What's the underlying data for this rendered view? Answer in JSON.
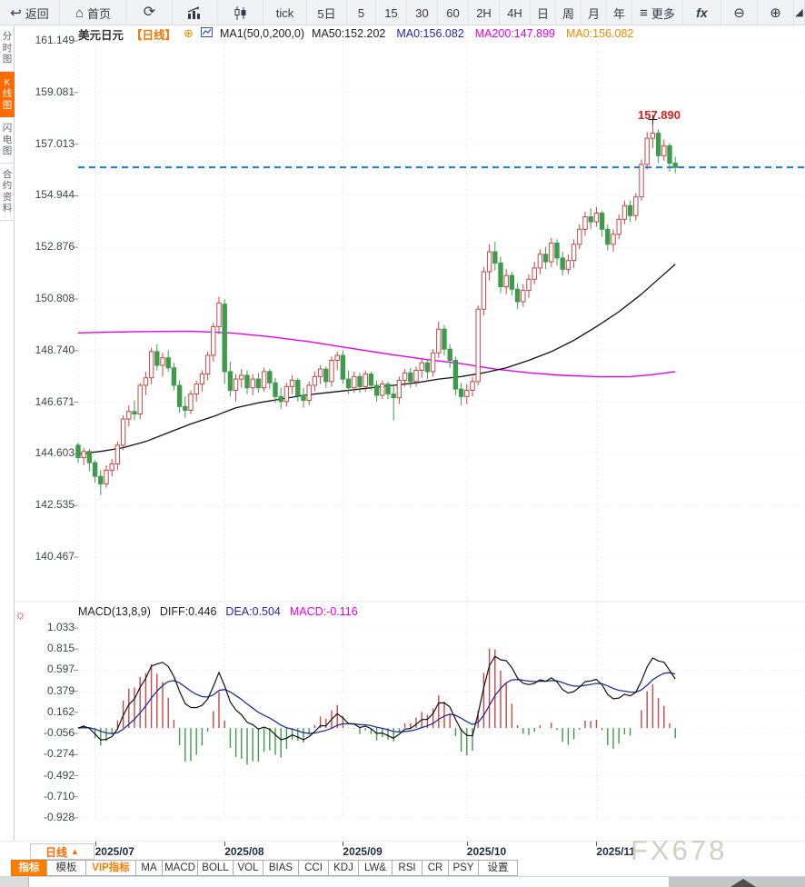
{
  "watermark": "FX678",
  "toolbar": {
    "items": [
      {
        "icon": "back-arrow",
        "label": "返回"
      },
      {
        "icon": "home",
        "label": "首页"
      },
      {
        "icon": "refresh",
        "label": ""
      },
      {
        "icon": "bar-chart",
        "label": ""
      },
      {
        "icon": "candlestick",
        "label": ""
      },
      {
        "label": "tick"
      },
      {
        "label": "5日"
      },
      {
        "label": "5"
      },
      {
        "label": "15"
      },
      {
        "label": "30"
      },
      {
        "label": "60"
      },
      {
        "label": "2H"
      },
      {
        "label": "4H"
      },
      {
        "label": "日"
      },
      {
        "label": "周"
      },
      {
        "label": "月"
      },
      {
        "label": "年"
      },
      {
        "icon": "menu",
        "label": "更多"
      },
      {
        "icon": "fx",
        "label": ""
      },
      {
        "icon": "zoom-out",
        "label": ""
      },
      {
        "icon": "zoom-in",
        "label": ""
      },
      {
        "icon": "draw",
        "label": ""
      }
    ]
  },
  "sidebar": {
    "tabs": [
      {
        "label": "分\n时\n图",
        "active": false
      },
      {
        "label": "K\n线\n图",
        "active": true
      },
      {
        "label": "闪\n电\n图",
        "active": false
      },
      {
        "label": "合\n约\n资\n料",
        "active": false
      }
    ]
  },
  "chart_header": {
    "symbol": "美元日元",
    "period": "【日线】",
    "ma_settings": "MA1(50,0,200,0)",
    "ma_values": [
      {
        "text": "MA50:152.202",
        "color": "#222222"
      },
      {
        "text": "MA0:156.082",
        "color": "#2525b0"
      },
      {
        "text": "MA200:147.899",
        "color": "#e800e8"
      },
      {
        "text": "MA0:156.082",
        "color": "#f08a00"
      }
    ]
  },
  "annotation": {
    "text": "157.890"
  },
  "price_axis": {
    "labels": [
      "161.149",
      "159.081",
      "157.013",
      "154.944",
      "152.876",
      "150.808",
      "148.740",
      "146.671",
      "144.603",
      "142.535",
      "140.467"
    ]
  },
  "macd": {
    "header": "MACD(13,8,9)",
    "diff_label": "DIFF:0.446",
    "dea_label": "DEA:0.504",
    "macd_label": "MACD:-0.116",
    "axis_labels": [
      "1.033",
      "0.815",
      "0.597",
      "0.379",
      "0.162",
      "-0.056",
      "-0.274",
      "-0.492",
      "-0.710",
      "-0.928"
    ]
  },
  "x_axis": {
    "period_label": "日线",
    "period_arrow": "▲",
    "months": [
      {
        "label": "2025/07",
        "index": 3
      },
      {
        "label": "2025/08",
        "index": 26
      },
      {
        "label": "2025/09",
        "index": 47
      },
      {
        "label": "2025/10",
        "index": 69
      },
      {
        "label": "2025/11",
        "index": 92
      }
    ]
  },
  "bottom_toolbar": {
    "tabs": [
      {
        "label": "指标",
        "variant": "active"
      },
      {
        "label": "模板",
        "variant": ""
      },
      {
        "label": "VIP指标",
        "variant": "vip"
      },
      {
        "label": "MA",
        "variant": ""
      },
      {
        "label": "MACD",
        "variant": ""
      },
      {
        "label": "BOLL",
        "variant": ""
      },
      {
        "label": "VOL",
        "variant": ""
      },
      {
        "label": "BIAS",
        "variant": ""
      },
      {
        "label": "CCI",
        "variant": ""
      },
      {
        "label": "KDJ",
        "variant": ""
      },
      {
        "label": "LW&",
        "variant": ""
      },
      {
        "label": "RSI",
        "variant": ""
      },
      {
        "label": "CR",
        "variant": ""
      },
      {
        "label": "PSY",
        "variant": ""
      },
      {
        "label": "设置",
        "variant": ""
      }
    ]
  },
  "chart_data": {
    "type": "candlestick+macd",
    "symbol": "USD/JPY daily (美元日元 日线)",
    "price_axis_range": {
      "top": 161.149,
      "bottom": 140.467
    },
    "macd_axis_range": {
      "top": 1.033,
      "bottom": -0.928
    },
    "current_price_line": 156.082,
    "high_marker": {
      "index": 102,
      "price": 157.89
    },
    "macd_params": {
      "display": "13,8,9",
      "fast": 8,
      "slow": 13,
      "signal": 9
    },
    "colors": {
      "up": "#c64747",
      "down": "#3f9a4c",
      "ma50": "#111111",
      "ma200": "#e800e8",
      "diff": "#111111",
      "dea": "#22309a",
      "price_line": "#1779e0",
      "grid_h": "#ececf6",
      "grid_v": "#e3dcee"
    },
    "candles": [
      [
        144.95,
        145.05,
        144.25,
        144.45
      ],
      [
        144.45,
        144.85,
        144.15,
        144.7
      ],
      [
        144.7,
        144.8,
        143.9,
        144.25
      ],
      [
        144.25,
        144.35,
        143.45,
        143.7
      ],
      [
        143.7,
        143.95,
        142.95,
        143.4
      ],
      [
        143.4,
        144.15,
        143.25,
        143.95
      ],
      [
        143.95,
        144.4,
        143.7,
        144.2
      ],
      [
        144.2,
        145.1,
        143.95,
        144.95
      ],
      [
        144.95,
        146.15,
        144.75,
        146.0
      ],
      [
        146.0,
        146.55,
        145.7,
        146.3
      ],
      [
        146.3,
        146.75,
        145.95,
        146.2
      ],
      [
        146.2,
        147.45,
        146.0,
        147.35
      ],
      [
        147.35,
        147.9,
        146.95,
        147.65
      ],
      [
        147.65,
        148.85,
        147.4,
        148.7
      ],
      [
        148.7,
        149.0,
        147.95,
        148.15
      ],
      [
        148.15,
        148.65,
        147.7,
        148.45
      ],
      [
        148.45,
        148.75,
        147.9,
        148.05
      ],
      [
        148.05,
        148.25,
        147.15,
        147.35
      ],
      [
        147.35,
        147.55,
        146.25,
        146.5
      ],
      [
        146.5,
        146.9,
        146.05,
        146.35
      ],
      [
        146.35,
        147.15,
        146.2,
        147.0
      ],
      [
        147.0,
        147.55,
        146.7,
        147.4
      ],
      [
        147.4,
        147.95,
        147.1,
        147.8
      ],
      [
        147.8,
        148.7,
        147.55,
        148.55
      ],
      [
        148.55,
        149.85,
        148.3,
        149.7
      ],
      [
        149.7,
        150.9,
        149.4,
        150.65
      ],
      [
        150.6,
        150.8,
        147.4,
        147.9
      ],
      [
        147.9,
        148.3,
        146.9,
        147.15
      ],
      [
        147.15,
        147.8,
        146.7,
        147.6
      ],
      [
        147.6,
        148.0,
        147.25,
        147.75
      ],
      [
        147.75,
        147.95,
        147.0,
        147.25
      ],
      [
        147.25,
        147.8,
        146.95,
        147.6
      ],
      [
        147.6,
        147.85,
        147.05,
        147.25
      ],
      [
        147.25,
        148.05,
        147.1,
        147.9
      ],
      [
        147.9,
        148.0,
        147.2,
        147.45
      ],
      [
        147.45,
        147.65,
        146.65,
        146.9
      ],
      [
        146.9,
        147.25,
        146.4,
        146.7
      ],
      [
        146.7,
        147.45,
        146.5,
        147.3
      ],
      [
        147.3,
        147.75,
        147.0,
        147.55
      ],
      [
        147.55,
        147.65,
        146.7,
        146.95
      ],
      [
        146.95,
        147.25,
        146.45,
        146.75
      ],
      [
        146.75,
        147.5,
        146.55,
        147.35
      ],
      [
        147.35,
        147.9,
        147.1,
        147.7
      ],
      [
        147.7,
        148.15,
        147.4,
        148.0
      ],
      [
        148.0,
        148.1,
        147.25,
        147.5
      ],
      [
        147.5,
        148.5,
        147.3,
        148.35
      ],
      [
        148.35,
        148.7,
        147.95,
        148.55
      ],
      [
        148.55,
        148.75,
        147.4,
        147.6
      ],
      [
        147.6,
        147.95,
        147.0,
        147.25
      ],
      [
        147.25,
        147.9,
        147.05,
        147.7
      ],
      [
        147.7,
        147.85,
        147.05,
        147.3
      ],
      [
        147.3,
        147.95,
        147.1,
        147.8
      ],
      [
        147.8,
        147.9,
        147.15,
        147.35
      ],
      [
        147.35,
        147.55,
        146.7,
        146.95
      ],
      [
        146.95,
        147.55,
        146.8,
        147.4
      ],
      [
        147.4,
        147.5,
        146.8,
        147.0
      ],
      [
        147.0,
        147.3,
        145.95,
        146.85
      ],
      [
        146.85,
        147.7,
        146.6,
        147.55
      ],
      [
        147.55,
        148.0,
        147.3,
        147.85
      ],
      [
        147.85,
        148.05,
        147.25,
        147.5
      ],
      [
        147.5,
        148.1,
        147.3,
        147.95
      ],
      [
        147.95,
        148.45,
        147.65,
        148.25
      ],
      [
        148.25,
        148.4,
        147.6,
        147.9
      ],
      [
        147.9,
        148.8,
        147.7,
        148.65
      ],
      [
        148.65,
        149.9,
        148.45,
        149.6
      ],
      [
        149.6,
        149.75,
        148.55,
        148.8
      ],
      [
        148.8,
        149.0,
        148.05,
        148.35
      ],
      [
        148.35,
        148.5,
        146.95,
        147.2
      ],
      [
        147.2,
        147.45,
        146.55,
        146.9
      ],
      [
        146.9,
        147.4,
        146.6,
        147.15
      ],
      [
        147.15,
        147.7,
        146.9,
        147.5
      ],
      [
        147.5,
        150.55,
        147.35,
        150.4
      ],
      [
        150.4,
        152.1,
        150.15,
        151.9
      ],
      [
        151.9,
        153.0,
        151.55,
        152.7
      ],
      [
        152.7,
        153.1,
        151.95,
        152.25
      ],
      [
        152.25,
        152.5,
        151.05,
        151.3
      ],
      [
        151.3,
        152.0,
        151.0,
        151.75
      ],
      [
        151.75,
        151.9,
        150.95,
        151.2
      ],
      [
        151.2,
        151.45,
        150.4,
        150.7
      ],
      [
        150.7,
        151.4,
        150.5,
        151.15
      ],
      [
        151.15,
        151.8,
        150.85,
        151.6
      ],
      [
        151.6,
        152.3,
        151.4,
        152.05
      ],
      [
        152.05,
        152.8,
        151.8,
        152.6
      ],
      [
        152.6,
        152.9,
        152.0,
        152.3
      ],
      [
        152.3,
        153.25,
        152.1,
        153.05
      ],
      [
        153.05,
        153.2,
        152.15,
        152.45
      ],
      [
        152.45,
        152.7,
        151.75,
        152.0
      ],
      [
        152.0,
        152.6,
        151.8,
        152.35
      ],
      [
        152.35,
        153.2,
        152.05,
        153.0
      ],
      [
        153.0,
        153.8,
        152.8,
        153.6
      ],
      [
        153.6,
        154.3,
        153.35,
        154.1
      ],
      [
        154.1,
        154.45,
        153.6,
        153.9
      ],
      [
        153.9,
        154.5,
        153.7,
        154.25
      ],
      [
        154.25,
        154.35,
        153.3,
        153.6
      ],
      [
        153.6,
        153.8,
        152.75,
        153.0
      ],
      [
        153.0,
        153.6,
        152.7,
        153.4
      ],
      [
        153.4,
        154.2,
        153.2,
        154.0
      ],
      [
        154.0,
        154.75,
        153.8,
        154.55
      ],
      [
        154.55,
        154.75,
        153.9,
        154.15
      ],
      [
        154.15,
        155.05,
        153.95,
        154.9
      ],
      [
        154.9,
        156.4,
        154.75,
        156.2
      ],
      [
        156.2,
        157.5,
        156.0,
        157.25
      ],
      [
        157.25,
        157.89,
        156.85,
        157.45
      ],
      [
        157.45,
        157.6,
        156.25,
        156.55
      ],
      [
        156.55,
        157.2,
        156.35,
        156.95
      ],
      [
        156.95,
        157.05,
        155.9,
        156.25
      ],
      [
        156.25,
        156.5,
        155.85,
        156.08
      ]
    ],
    "ma50_points": [
      [
        0,
        144.6
      ],
      [
        4,
        144.7
      ],
      [
        8,
        144.85
      ],
      [
        12,
        145.1
      ],
      [
        16,
        145.45
      ],
      [
        20,
        145.8
      ],
      [
        24,
        146.1
      ],
      [
        28,
        146.45
      ],
      [
        32,
        146.65
      ],
      [
        36,
        146.8
      ],
      [
        40,
        146.95
      ],
      [
        44,
        147.05
      ],
      [
        48,
        147.15
      ],
      [
        52,
        147.25
      ],
      [
        56,
        147.35
      ],
      [
        60,
        147.45
      ],
      [
        64,
        147.6
      ],
      [
        68,
        147.7
      ],
      [
        72,
        147.85
      ],
      [
        76,
        148.05
      ],
      [
        80,
        148.35
      ],
      [
        84,
        148.7
      ],
      [
        88,
        149.15
      ],
      [
        92,
        149.7
      ],
      [
        96,
        150.3
      ],
      [
        100,
        151.0
      ],
      [
        103,
        151.6
      ],
      [
        106,
        152.2
      ]
    ],
    "ma200_points": [
      [
        0,
        149.45
      ],
      [
        10,
        149.5
      ],
      [
        20,
        149.52
      ],
      [
        27,
        149.45
      ],
      [
        34,
        149.3
      ],
      [
        41,
        149.1
      ],
      [
        48,
        148.85
      ],
      [
        55,
        148.6
      ],
      [
        62,
        148.38
      ],
      [
        68,
        148.22
      ],
      [
        74,
        148.0
      ],
      [
        80,
        147.85
      ],
      [
        86,
        147.75
      ],
      [
        92,
        147.7
      ],
      [
        98,
        147.7
      ],
      [
        102,
        147.78
      ],
      [
        106,
        147.9
      ]
    ]
  }
}
